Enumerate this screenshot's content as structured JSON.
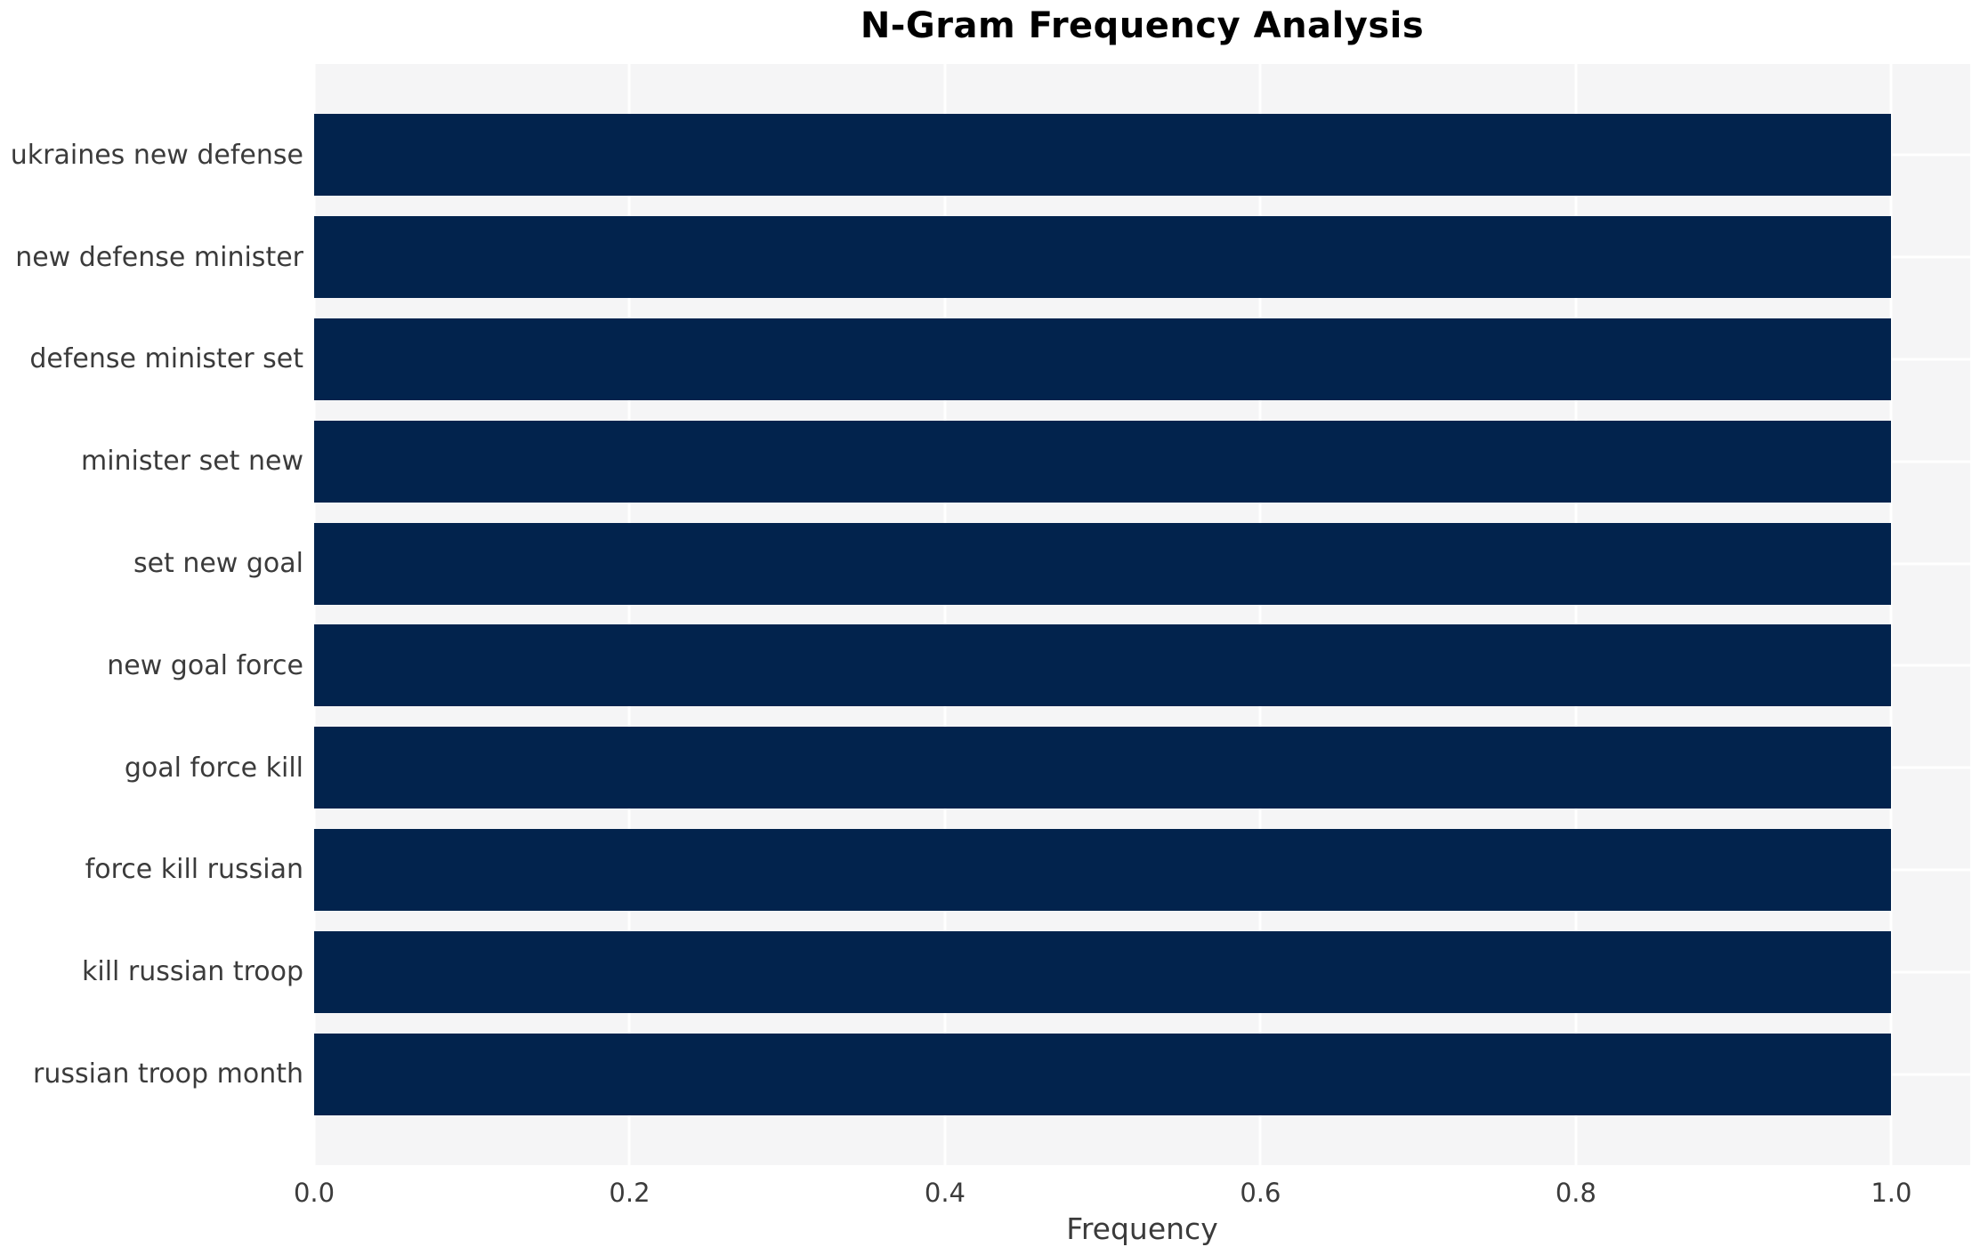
{
  "chart_data": {
    "type": "bar",
    "orientation": "horizontal",
    "title": "N-Gram Frequency Analysis",
    "xlabel": "Frequency",
    "ylabel": "",
    "categories": [
      "ukraines new defense",
      "new defense minister",
      "defense minister set",
      "minister set new",
      "set new goal",
      "new goal force",
      "goal force kill",
      "force kill russian",
      "kill russian troop",
      "russian troop month"
    ],
    "values": [
      1.0,
      1.0,
      1.0,
      1.0,
      1.0,
      1.0,
      1.0,
      1.0,
      1.0,
      1.0
    ],
    "xlim": [
      0,
      1.05
    ],
    "xticks": [
      0.0,
      0.2,
      0.4,
      0.6,
      0.8,
      1.0
    ],
    "xtick_labels": [
      "0.0",
      "0.2",
      "0.4",
      "0.6",
      "0.8",
      "1.0"
    ],
    "grid": true,
    "legend": null,
    "colors": {
      "bar": "#02234d",
      "plot_background": "#f5f5f6",
      "gridline": "#ffffff",
      "title_text": "#000000",
      "tick_text": "#3b3b3b"
    }
  }
}
